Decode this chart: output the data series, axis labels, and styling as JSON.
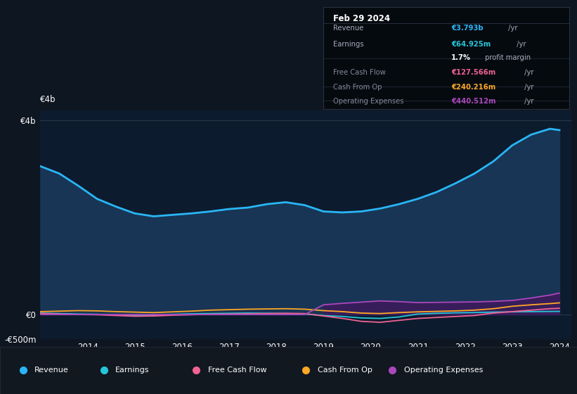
{
  "background_color": "#0e1621",
  "plot_bg_color": "#0d1b2e",
  "years": [
    2013.0,
    2013.4,
    2013.8,
    2014.2,
    2014.6,
    2015.0,
    2015.4,
    2015.8,
    2016.2,
    2016.6,
    2017.0,
    2017.4,
    2017.8,
    2018.2,
    2018.6,
    2019.0,
    2019.4,
    2019.8,
    2020.2,
    2020.6,
    2021.0,
    2021.4,
    2021.8,
    2022.2,
    2022.6,
    2023.0,
    2023.4,
    2023.8,
    2024.0
  ],
  "revenue": [
    3050,
    2900,
    2650,
    2380,
    2220,
    2080,
    2020,
    2050,
    2080,
    2120,
    2170,
    2200,
    2270,
    2310,
    2250,
    2120,
    2100,
    2120,
    2180,
    2270,
    2380,
    2520,
    2700,
    2900,
    3150,
    3480,
    3700,
    3820,
    3793
  ],
  "earnings": [
    30,
    20,
    10,
    5,
    -10,
    -20,
    -15,
    5,
    15,
    20,
    25,
    30,
    25,
    20,
    10,
    -20,
    -40,
    -70,
    -80,
    -50,
    10,
    25,
    35,
    40,
    50,
    55,
    60,
    64,
    65
  ],
  "free_cash_flow": [
    20,
    10,
    0,
    -5,
    -20,
    -35,
    -30,
    -15,
    -5,
    5,
    10,
    15,
    20,
    25,
    20,
    -30,
    -80,
    -140,
    -160,
    -120,
    -80,
    -60,
    -40,
    -20,
    30,
    60,
    90,
    120,
    128
  ],
  "cash_from_op": [
    60,
    70,
    80,
    75,
    60,
    50,
    40,
    55,
    70,
    90,
    100,
    110,
    115,
    120,
    110,
    80,
    60,
    30,
    20,
    40,
    55,
    65,
    75,
    90,
    120,
    170,
    200,
    225,
    240
  ],
  "operating_expenses": [
    0,
    0,
    0,
    0,
    0,
    0,
    0,
    0,
    0,
    0,
    0,
    0,
    0,
    0,
    0,
    200,
    230,
    255,
    280,
    265,
    245,
    250,
    255,
    260,
    270,
    290,
    340,
    400,
    441
  ],
  "colors": {
    "revenue": "#29b6f6",
    "earnings": "#26c6da",
    "free_cash_flow": "#f06292",
    "cash_from_op": "#ffa726",
    "operating_expenses": "#ab47bc"
  },
  "revenue_fill": "#1a3a5c",
  "op_exp_fill": "#3d1a5c",
  "ylim_min": -500,
  "ylim_max": 4200,
  "ytick_vals": [
    -500,
    0,
    4000
  ],
  "ytick_labels": [
    "-€500m",
    "€0",
    "€4b"
  ],
  "xtick_vals": [
    2014,
    2015,
    2016,
    2017,
    2018,
    2019,
    2020,
    2021,
    2022,
    2023,
    2024
  ],
  "xtick_labels": [
    "2014",
    "2015",
    "2016",
    "2017",
    "2018",
    "2019",
    "2020",
    "2021",
    "2022",
    "2023",
    "2024"
  ],
  "info_date": "Feb 29 2024",
  "info_rows": [
    {
      "label": "Revenue",
      "value": "€3.793b",
      "suffix": " /yr",
      "vcolor": "#29b6f6",
      "dimmed": false
    },
    {
      "label": "Earnings",
      "value": "€64.925m",
      "suffix": " /yr",
      "vcolor": "#26c6da",
      "dimmed": false
    },
    {
      "label": "",
      "value": "1.7%",
      "suffix": " profit margin",
      "vcolor": "white",
      "dimmed": false
    },
    {
      "label": "Free Cash Flow",
      "value": "€127.566m",
      "suffix": " /yr",
      "vcolor": "#f06292",
      "dimmed": true
    },
    {
      "label": "Cash From Op",
      "value": "€240.216m",
      "suffix": " /yr",
      "vcolor": "#ffa726",
      "dimmed": true
    },
    {
      "label": "Operating Expenses",
      "value": "€440.512m",
      "suffix": " /yr",
      "vcolor": "#ab47bc",
      "dimmed": true
    }
  ],
  "legend_items": [
    {
      "label": "Revenue",
      "color": "#29b6f6"
    },
    {
      "label": "Earnings",
      "color": "#26c6da"
    },
    {
      "label": "Free Cash Flow",
      "color": "#f06292"
    },
    {
      "label": "Cash From Op",
      "color": "#ffa726"
    },
    {
      "label": "Operating Expenses",
      "color": "#ab47bc"
    }
  ]
}
